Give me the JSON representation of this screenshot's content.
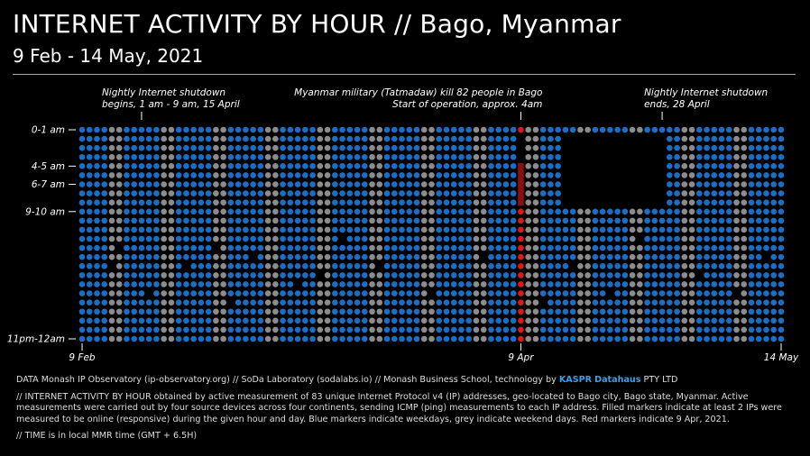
{
  "header": {
    "title": "INTERNET ACTIVITY BY HOUR // Bago, Myanmar",
    "subtitle": "9 Feb - 14 May, 2021"
  },
  "chart_data": {
    "type": "scatter",
    "title": "INTERNET ACTIVITY BY HOUR // Bago, Myanmar",
    "subtitle": "9 Feb - 14 May, 2021",
    "x_range": [
      "2021-02-09",
      "2021-05-14"
    ],
    "x_tick_labels": [
      "9 Feb",
      "9 Apr",
      "14 May"
    ],
    "y_tick_labels": [
      "0-1 am",
      "4-5 am",
      "6-7 am",
      "9-10 am",
      "11pm-12am"
    ],
    "hours_per_day": 24,
    "colors": {
      "weekday": "#1a6fc4",
      "weekend": "#8c8c8c",
      "apr9": "#e01818",
      "apr9_bar": "#8a0f0f"
    },
    "legend": "none",
    "grid": false,
    "shutdown_start": "2021-04-15",
    "shutdown_end": "2021-04-28",
    "shutdown_offline_hours": [
      1,
      2,
      3,
      4,
      5,
      6,
      7,
      8
    ],
    "apr9_offline_hours": [
      1,
      2,
      3,
      4,
      5,
      6,
      7,
      8
    ],
    "offline_cells": [
      [
        "2021-02-13",
        15
      ],
      [
        "2021-02-14",
        13
      ],
      [
        "2021-02-18",
        18
      ],
      [
        "2021-02-23",
        15
      ],
      [
        "2021-02-27",
        13
      ],
      [
        "2021-03-01",
        19
      ],
      [
        "2021-03-04",
        14
      ],
      [
        "2021-03-10",
        17
      ],
      [
        "2021-03-13",
        16
      ],
      [
        "2021-03-16",
        12
      ],
      [
        "2021-03-21",
        15
      ],
      [
        "2021-03-28",
        18
      ],
      [
        "2021-04-04",
        14
      ],
      [
        "2021-04-12",
        19
      ],
      [
        "2021-04-16",
        15
      ],
      [
        "2021-04-21",
        18
      ],
      [
        "2021-04-25",
        12
      ],
      [
        "2021-05-03",
        16
      ],
      [
        "2021-05-08",
        18
      ],
      [
        "2021-05-12",
        14
      ]
    ],
    "annotations": [
      {
        "date": "2021-02-17",
        "line1": "Nightly Internet shutdown",
        "line2": "begins, 1 am - 9 am, 15 April"
      },
      {
        "date": "2021-04-09",
        "line1": "Myanmar military (Tatmadaw) kill 82 people in Bago",
        "line2": "Start of operation, approx. 4am"
      },
      {
        "date": "2021-04-28",
        "line1": "Nightly Internet shutdown",
        "line2": "ends, 28 April"
      }
    ]
  },
  "footer": {
    "line1_prefix": "DATA Monash IP Observatory (ip-observatory.org) // SoDa Laboratory (sodalabs.io) // Monash Business School, technology by",
    "kaspr": "KASPR",
    "datahaus": "Datahaus",
    "pty": "PTY LTD",
    "line2": "// INTERNET ACTIVITY BY HOUR obtained by active measurement of 83 unique Internet Protocol v4 (IP) addresses, geo-located to Bago city, Bago state, Myanmar. Active measurements were carried out by four source devices across four continents, sending ICMP (ping) measurements to each IP address. Filled markers indicate at least 2 IPs were measured to be online (responsive) during the given hour and day. Blue markers indicate weekdays, grey indicate weekend days. Red markers indicate 9 Apr, 2021.",
    "line3": "// TIME is in local MMR time (GMT + 6.5H)"
  }
}
